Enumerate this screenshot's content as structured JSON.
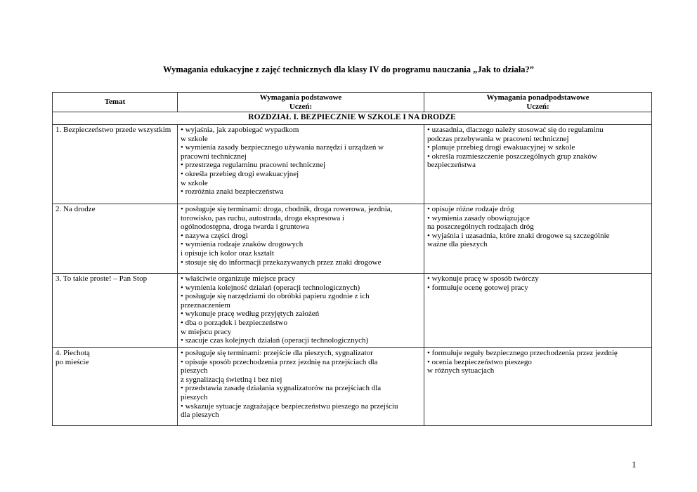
{
  "title": "Wymagania edukacyjne z zajęć technicznych dla klasy IV do programu nauczania „Jak to działa?”",
  "table": {
    "headers": [
      {
        "line1": "Temat",
        "line2": ""
      },
      {
        "line1": "Wymagania podstawowe",
        "line2": "Uczeń:"
      },
      {
        "line1": "Wymagania ponadpodstawowe",
        "line2": "Uczeń:"
      }
    ],
    "section": "ROZDZIAŁ I. BEZPIECZNIE W SZKOLE I NA DRODZE",
    "rows": [
      {
        "topic": [
          "1. Bezpieczeństwo przede wszystkim"
        ],
        "basic": [
          "• wyjaśnia, jak zapobiegać wypadkom",
          "w szkole",
          "• wymienia zasady bezpiecznego używania narzędzi i urządzeń w",
          "pracowni technicznej",
          "• przestrzega regulaminu pracowni technicznej",
          "• określa przebieg drogi ewakuacyjnej",
          "w szkole",
          "• rozróżnia znaki bezpieczeństwa"
        ],
        "advanced": [
          "• uzasadnia, dlaczego należy stosować się do regulaminu",
          "podczas przebywania w pracowni technicznej",
          "• planuje przebieg drogi ewakuacyjnej w szkole",
          "• określa rozmieszczenie poszczególnych grup znaków",
          "bezpieczeństwa"
        ]
      },
      {
        "topic": [
          "2. Na drodze"
        ],
        "basic": [
          "• posługuje się terminami: droga, chodnik, droga rowerowa, jezdnia,",
          "torowisko, pas ruchu, autostrada, droga ekspresowa i",
          "ogólnodostępna, droga twarda i gruntowa",
          "• nazywa części drogi",
          "• wymienia rodzaje znaków drogowych",
          "i opisuje ich kolor oraz kształt",
          "• stosuje się do informacji przekazywanych przez znaki drogowe"
        ],
        "advanced": [
          "• opisuje różne rodzaje dróg",
          "• wymienia zasady obowiązujące",
          "na poszczególnych rodzajach dróg",
          "• wyjaśnia i uzasadnia, które znaki drogowe są szczególnie",
          "ważne dla pieszych"
        ]
      },
      {
        "topic": [
          "3. To takie proste! – Pan Stop"
        ],
        "basic": [
          "• właściwie organizuje miejsce pracy",
          "• wymienia kolejność działań (operacji technologicznych)",
          "• posługuje się narzędziami do obróbki papieru zgodnie z ich",
          "przeznaczeniem",
          "• wykonuje pracę według przyjętych założeń",
          "• dba o porządek i bezpieczeństwo",
          "w miejscu pracy",
          "• szacuje czas kolejnych działań (operacji technologicznych)"
        ],
        "advanced": [
          "• wykonuje pracę w sposób twórczy",
          "• formułuje ocenę gotowej pracy"
        ]
      },
      {
        "topic": [
          "4. Piechotą",
          "po mieście"
        ],
        "basic": [
          "• posługuje się terminami: przejście dla pieszych, sygnalizator",
          "• opisuje sposób przechodzenia przez jezdnię na przejściach dla",
          "pieszych",
          "z sygnalizacją świetlną i bez niej",
          "• przedstawia zasadę działania sygnalizatorów na przejściach dla",
          "pieszych",
          "• wskazuje sytuacje zagrażające bezpieczeństwu pieszego na przejściu",
          "dla pieszych"
        ],
        "advanced": [
          "• formułuje reguły bezpiecznego przechodzenia przez jezdnię",
          "• ocenia bezpieczeństwo pieszego",
          "w różnych sytuacjach"
        ]
      }
    ]
  },
  "page_number": "1"
}
